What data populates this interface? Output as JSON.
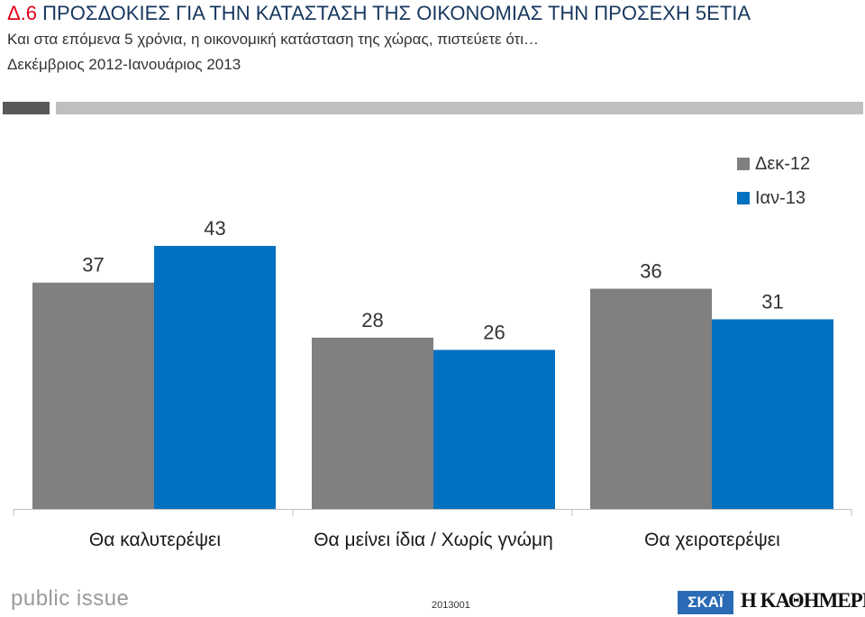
{
  "header": {
    "code": "Δ.6",
    "title": "ΠΡΟΣΔΟΚΙΕΣ ΓΙΑ ΤΗΝ ΚΑΤΑΣΤΑΣΗ ΤΗΣ ΟΙΚΟΝΟΜΙΑΣ ΤΗΝ ΠΡΟΣΕΧΗ 5ΕΤΙΑ",
    "subtitle": "Και στα επόμενα 5 χρόνια, η οικονομική κατάσταση της χώρας, πιστεύετε ότι…",
    "period": "Δεκέμβριος 2012-Ιανουάριος 2013"
  },
  "footer": {
    "brand_left": "public issue",
    "code": "2013001",
    "brand_skai": "ΣΚΑΪ",
    "brand_kathimerini": "Η ΚΑΘΗΜΕΡΙΝΗ"
  },
  "colors": {
    "title": "#17375e",
    "code": "#e3001b",
    "series_1": "#808080",
    "series_2": "#0070c0"
  },
  "chart_data": {
    "type": "bar",
    "categories": [
      "Θα καλυτερέψει",
      "Θα μείνει ίδια / Χωρίς γνώμη",
      "Θα χειροτερέψει"
    ],
    "series": [
      {
        "name": "Δεκ-12",
        "values": [
          37,
          28,
          36
        ],
        "color": "#808080"
      },
      {
        "name": "Ιαν-13",
        "values": [
          43,
          26,
          31
        ],
        "color": "#0070c0"
      }
    ],
    "ylim": [
      0,
      55
    ],
    "grid": false,
    "legend_position": "top-right"
  }
}
